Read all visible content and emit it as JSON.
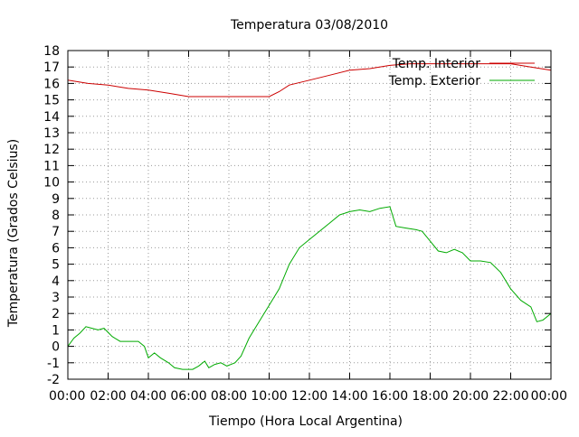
{
  "chart_data": {
    "type": "line",
    "title": "Temperatura 03/08/2010",
    "xlabel": "Tiempo (Hora Local Argentina)",
    "ylabel": "Temperatura (Grados Celsius)",
    "xlim": [
      0,
      24
    ],
    "ylim": [
      -2,
      18
    ],
    "grid": true,
    "legend_position": "top-right",
    "x_ticks": [
      {
        "value": 0,
        "label": "00:00"
      },
      {
        "value": 2,
        "label": "02:00"
      },
      {
        "value": 4,
        "label": "04:00"
      },
      {
        "value": 6,
        "label": "06:00"
      },
      {
        "value": 8,
        "label": "08:00"
      },
      {
        "value": 10,
        "label": "10:00"
      },
      {
        "value": 12,
        "label": "12:00"
      },
      {
        "value": 14,
        "label": "14:00"
      },
      {
        "value": 16,
        "label": "16:00"
      },
      {
        "value": 18,
        "label": "18:00"
      },
      {
        "value": 20,
        "label": "20:00"
      },
      {
        "value": 22,
        "label": "22:00"
      },
      {
        "value": 24,
        "label": "00:00"
      }
    ],
    "y_ticks": [
      -2,
      -1,
      0,
      1,
      2,
      3,
      4,
      5,
      6,
      7,
      8,
      9,
      10,
      11,
      12,
      13,
      14,
      15,
      16,
      17,
      18
    ],
    "series": [
      {
        "name": "Temp. Interior",
        "color": "#cc0000",
        "points": [
          [
            0,
            16.2
          ],
          [
            1,
            16.0
          ],
          [
            2,
            15.9
          ],
          [
            3,
            15.7
          ],
          [
            4,
            15.6
          ],
          [
            5,
            15.4
          ],
          [
            6,
            15.2
          ],
          [
            7,
            15.2
          ],
          [
            8,
            15.2
          ],
          [
            9,
            15.2
          ],
          [
            10,
            15.2
          ],
          [
            10.5,
            15.5
          ],
          [
            11,
            15.9
          ],
          [
            12,
            16.2
          ],
          [
            13,
            16.5
          ],
          [
            14,
            16.8
          ],
          [
            15,
            16.9
          ],
          [
            16,
            17.1
          ],
          [
            17,
            17.2
          ],
          [
            18,
            17.2
          ],
          [
            19,
            17.2
          ],
          [
            20,
            17.2
          ],
          [
            21,
            17.2
          ],
          [
            22,
            17.2
          ],
          [
            23,
            17.0
          ],
          [
            24,
            16.8
          ]
        ]
      },
      {
        "name": "Temp. Exterior",
        "color": "#00aa00",
        "points": [
          [
            0,
            0.0
          ],
          [
            0.3,
            0.5
          ],
          [
            0.6,
            0.8
          ],
          [
            0.9,
            1.2
          ],
          [
            1.2,
            1.1
          ],
          [
            1.5,
            1.0
          ],
          [
            1.8,
            1.1
          ],
          [
            2.2,
            0.6
          ],
          [
            2.6,
            0.3
          ],
          [
            3.0,
            0.3
          ],
          [
            3.5,
            0.3
          ],
          [
            3.8,
            0.0
          ],
          [
            4.0,
            -0.7
          ],
          [
            4.3,
            -0.4
          ],
          [
            4.6,
            -0.7
          ],
          [
            5.0,
            -1.0
          ],
          [
            5.3,
            -1.3
          ],
          [
            5.7,
            -1.4
          ],
          [
            6.2,
            -1.4
          ],
          [
            6.5,
            -1.2
          ],
          [
            6.8,
            -0.9
          ],
          [
            7.0,
            -1.3
          ],
          [
            7.3,
            -1.1
          ],
          [
            7.6,
            -1.0
          ],
          [
            7.9,
            -1.2
          ],
          [
            8.3,
            -1.0
          ],
          [
            8.6,
            -0.6
          ],
          [
            9.0,
            0.5
          ],
          [
            9.5,
            1.5
          ],
          [
            10.0,
            2.5
          ],
          [
            10.5,
            3.5
          ],
          [
            11.0,
            5.0
          ],
          [
            11.5,
            6.0
          ],
          [
            12.0,
            6.5
          ],
          [
            12.5,
            7.0
          ],
          [
            13.0,
            7.5
          ],
          [
            13.5,
            8.0
          ],
          [
            14.0,
            8.2
          ],
          [
            14.5,
            8.3
          ],
          [
            15.0,
            8.2
          ],
          [
            15.5,
            8.4
          ],
          [
            16.0,
            8.5
          ],
          [
            16.3,
            7.3
          ],
          [
            16.8,
            7.2
          ],
          [
            17.3,
            7.1
          ],
          [
            17.6,
            7.0
          ],
          [
            18.0,
            6.4
          ],
          [
            18.4,
            5.8
          ],
          [
            18.8,
            5.7
          ],
          [
            19.2,
            5.9
          ],
          [
            19.6,
            5.7
          ],
          [
            20.0,
            5.2
          ],
          [
            20.5,
            5.2
          ],
          [
            21.0,
            5.1
          ],
          [
            21.5,
            4.5
          ],
          [
            22.0,
            3.5
          ],
          [
            22.5,
            2.8
          ],
          [
            23.0,
            2.4
          ],
          [
            23.3,
            1.5
          ],
          [
            23.6,
            1.6
          ],
          [
            24.0,
            2.0
          ]
        ]
      }
    ]
  }
}
